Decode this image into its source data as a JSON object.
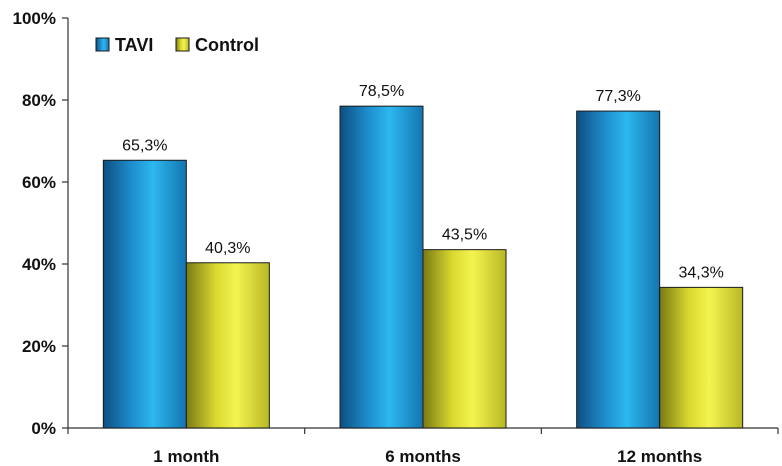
{
  "chart_data": {
    "type": "bar",
    "categories": [
      "1 month",
      "6 months",
      "12 months"
    ],
    "series": [
      {
        "name": "TAVI",
        "values": [
          65.3,
          78.5,
          77.3
        ],
        "labels": [
          "65,3%",
          "78,5%",
          "77,3%"
        ],
        "color": "#1e9fd6"
      },
      {
        "name": "Control",
        "values": [
          40.3,
          43.5,
          34.3
        ],
        "labels": [
          "40,3%",
          "43,5%",
          "34,3%"
        ],
        "color": "#e8e83a"
      }
    ],
    "ylim": [
      0,
      100
    ],
    "yticks": [
      0,
      20,
      40,
      60,
      80,
      100
    ],
    "ytick_labels": [
      "0%",
      "20%",
      "40%",
      "60%",
      "80%",
      "100%"
    ],
    "grid": false,
    "legend_position": "top-left",
    "xlabel": "",
    "ylabel": ""
  }
}
